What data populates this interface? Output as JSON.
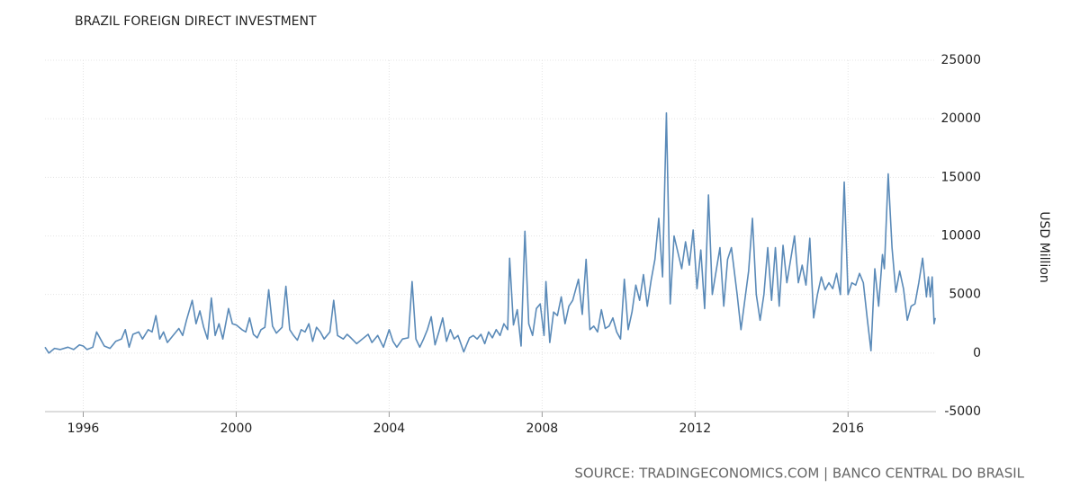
{
  "chart_data": {
    "type": "line",
    "title": "BRAZIL FOREIGN DIRECT INVESTMENT",
    "ylabel": "USD Million",
    "source": "SOURCE: TRADINGECONOMICS.COM | BANCO CENTRAL DO BRASIL",
    "color": "#5a8ab8",
    "grid": true,
    "xlim": [
      1995,
      2018.3
    ],
    "xticks": [
      1996,
      2000,
      2004,
      2008,
      2012,
      2016
    ],
    "ylim": [
      -5000,
      25000
    ],
    "yticks": [
      -5000,
      0,
      5000,
      10000,
      15000,
      20000,
      25000
    ],
    "x": [
      1995.0,
      1995.1,
      1995.25,
      1995.4,
      1995.6,
      1995.75,
      1995.9,
      1996.0,
      1996.1,
      1996.25,
      1996.35,
      1996.45,
      1996.55,
      1996.7,
      1996.85,
      1997.0,
      1997.1,
      1997.2,
      1997.3,
      1997.45,
      1997.55,
      1997.7,
      1997.8,
      1997.9,
      1998.0,
      1998.1,
      1998.2,
      1998.35,
      1998.5,
      1998.6,
      1998.7,
      1998.85,
      1998.95,
      1999.05,
      1999.15,
      1999.25,
      1999.35,
      1999.45,
      1999.55,
      1999.65,
      1999.8,
      1999.9,
      2000.0,
      2000.15,
      2000.25,
      2000.35,
      2000.45,
      2000.55,
      2000.65,
      2000.75,
      2000.85,
      2000.95,
      2001.05,
      2001.2,
      2001.3,
      2001.4,
      2001.5,
      2001.6,
      2001.7,
      2001.8,
      2001.9,
      2002.0,
      2002.1,
      2002.2,
      2002.3,
      2002.45,
      2002.55,
      2002.65,
      2002.8,
      2002.9,
      2003.0,
      2003.15,
      2003.3,
      2003.45,
      2003.55,
      2003.7,
      2003.85,
      2004.0,
      2004.1,
      2004.2,
      2004.35,
      2004.5,
      2004.6,
      2004.7,
      2004.8,
      2004.9,
      2005.0,
      2005.1,
      2005.2,
      2005.3,
      2005.4,
      2005.5,
      2005.6,
      2005.7,
      2005.8,
      2005.95,
      2006.1,
      2006.2,
      2006.3,
      2006.4,
      2006.5,
      2006.6,
      2006.7,
      2006.8,
      2006.9,
      2007.0,
      2007.1,
      2007.15,
      2007.25,
      2007.35,
      2007.45,
      2007.55,
      2007.65,
      2007.75,
      2007.85,
      2007.95,
      2008.05,
      2008.1,
      2008.2,
      2008.3,
      2008.4,
      2008.5,
      2008.6,
      2008.7,
      2008.8,
      2008.95,
      2009.05,
      2009.15,
      2009.25,
      2009.35,
      2009.45,
      2009.55,
      2009.65,
      2009.75,
      2009.85,
      2009.95,
      2010.05,
      2010.15,
      2010.25,
      2010.35,
      2010.45,
      2010.55,
      2010.65,
      2010.75,
      2010.85,
      2010.95,
      2011.05,
      2011.15,
      2011.25,
      2011.35,
      2011.45,
      2011.55,
      2011.65,
      2011.75,
      2011.85,
      2011.95,
      2012.05,
      2012.15,
      2012.25,
      2012.35,
      2012.45,
      2012.55,
      2012.65,
      2012.75,
      2012.85,
      2012.95,
      2013.1,
      2013.2,
      2013.3,
      2013.4,
      2013.5,
      2013.6,
      2013.7,
      2013.8,
      2013.9,
      2014.0,
      2014.1,
      2014.2,
      2014.3,
      2014.4,
      2014.5,
      2014.6,
      2014.7,
      2014.8,
      2014.9,
      2015.0,
      2015.1,
      2015.2,
      2015.3,
      2015.4,
      2015.5,
      2015.6,
      2015.7,
      2015.8,
      2015.9,
      2016.0,
      2016.1,
      2016.2,
      2016.3,
      2016.4,
      2016.5,
      2016.6,
      2016.7,
      2016.8,
      2016.9,
      2016.95,
      2017.05,
      2017.15,
      2017.25,
      2017.35,
      2017.45,
      2017.55,
      2017.65,
      2017.75,
      2017.85,
      2017.95,
      2018.05,
      2018.1,
      2018.15,
      2018.2,
      2018.25,
      2018.28
    ],
    "values": [
      500,
      0,
      400,
      300,
      500,
      300,
      700,
      600,
      300,
      500,
      1800,
      1200,
      600,
      400,
      1000,
      1200,
      2000,
      500,
      1600,
      1800,
      1200,
      2000,
      1800,
      3200,
      1200,
      1800,
      900,
      1500,
      2100,
      1500,
      2800,
      4500,
      2500,
      3600,
      2200,
      1200,
      4700,
      1500,
      2500,
      1200,
      3800,
      2500,
      2400,
      2000,
      1800,
      3000,
      1600,
      1300,
      2000,
      2200,
      5400,
      2300,
      1700,
      2200,
      5700,
      2000,
      1500,
      1100,
      2000,
      1800,
      2500,
      1000,
      2200,
      1800,
      1200,
      1800,
      4500,
      1500,
      1200,
      1600,
      1300,
      800,
      1200,
      1600,
      900,
      1500,
      500,
      2000,
      1000,
      500,
      1200,
      1300,
      6100,
      1200,
      500,
      1200,
      2000,
      3100,
      700,
      1800,
      3000,
      1000,
      2000,
      1200,
      1500,
      100,
      1300,
      1500,
      1200,
      1600,
      800,
      1800,
      1300,
      2000,
      1500,
      2500,
      2000,
      8100,
      2400,
      3700,
      600,
      10400,
      2500,
      1500,
      3800,
      4200,
      1500,
      6100,
      900,
      3500,
      3200,
      4800,
      2500,
      4000,
      4500,
      6300,
      3300,
      8000,
      2000,
      2300,
      1800,
      3700,
      2100,
      2300,
      3000,
      1800,
      1200,
      6300,
      2000,
      3500,
      5800,
      4500,
      6700,
      4000,
      6200,
      8000,
      11500,
      6500,
      20500,
      4200,
      10000,
      8600,
      7200,
      9500,
      7500,
      10500,
      5500,
      8800,
      3800,
      13500,
      5000,
      7000,
      9000,
      4000,
      8000,
      9000,
      5000,
      2000,
      4500,
      7000,
      11500,
      5000,
      2800,
      5000,
      9000,
      4500,
      9000,
      4000,
      9200,
      6000,
      8000,
      10000,
      6000,
      7500,
      5800,
      9800,
      3000,
      5000,
      6500,
      5400,
      6000,
      5500,
      6800,
      5000,
      14600,
      5000,
      6000,
      5800,
      6800,
      6000,
      3000,
      200,
      7200,
      4000,
      8400,
      7200,
      15300,
      9000,
      5200,
      7000,
      5500,
      2800,
      4000,
      4200,
      6000,
      8100,
      4800,
      6500,
      4800,
      6500,
      2500,
      3000
    ]
  }
}
